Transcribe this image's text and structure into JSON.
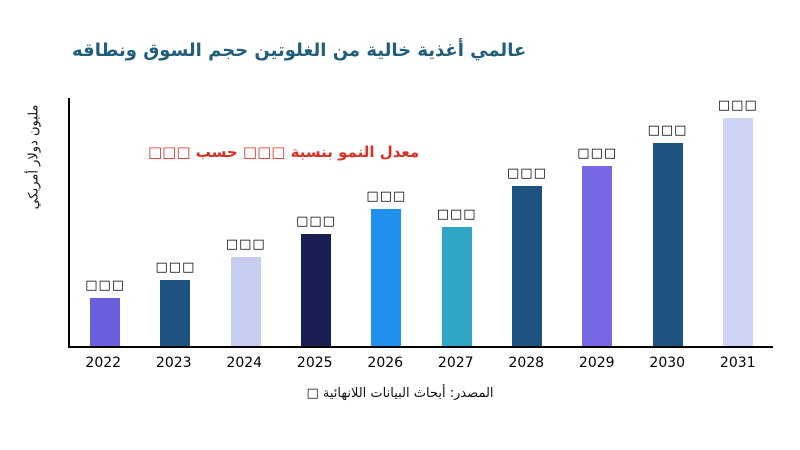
{
  "colors": {
    "title": "#215e7c",
    "annotation": "#d93025",
    "axis": "#000000",
    "background": "#ffffff"
  },
  "chart_data": {
    "type": "bar",
    "title": "عالمي أغذية خالية من الغلوتين حجم السوق ونطاقه",
    "ylabel": "مليون دولار أمريكي",
    "xlabel": "",
    "categories": [
      "2022",
      "2023",
      "2024",
      "2025",
      "2026",
      "2027",
      "2028",
      "2029",
      "2030",
      "2031"
    ],
    "value_labels": [
      "□□□",
      "□□□",
      "□□□",
      "□□□",
      "□□□",
      "□□□",
      "□□□",
      "□□□",
      "□□□",
      "□□□"
    ],
    "relative_values": [
      21,
      29,
      39,
      49,
      60,
      52,
      70,
      79,
      89,
      100
    ],
    "bar_colors": [
      "#6a5fdd",
      "#1e5280",
      "#c7cdf0",
      "#191f52",
      "#2090f0",
      "#31a5c6",
      "#1e5280",
      "#7668e5",
      "#1e5280",
      "#ced3f5"
    ],
    "annotation": "معدل النمو بنسبة □□□ حسب □□□",
    "source": "المصدر: أبحاث البيانات اللانهائية □",
    "grid": false,
    "legend_position": "none",
    "y_axis_ticks": []
  }
}
